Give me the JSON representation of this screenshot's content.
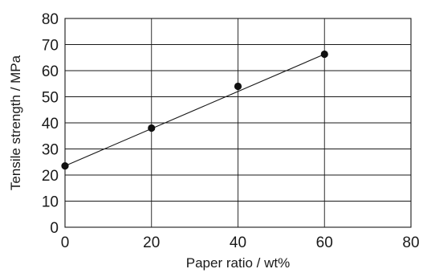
{
  "chart_data": {
    "type": "scatter",
    "xlabel": "Paper ratio / wt%",
    "ylabel": "Tensile strength / MPa",
    "xlim": [
      0,
      80
    ],
    "ylim": [
      0,
      80
    ],
    "xticks": [
      0,
      20,
      40,
      60,
      80
    ],
    "yticks": [
      0,
      10,
      20,
      30,
      40,
      50,
      60,
      70,
      80
    ],
    "grid": true,
    "series": [
      {
        "x": [
          0,
          20,
          40,
          60
        ],
        "y": [
          23.5,
          38,
          54,
          66.3
        ]
      }
    ],
    "trend_line": {
      "x": [
        0,
        60
      ],
      "y": [
        23.5,
        66.3
      ]
    },
    "colors": {
      "marks": "#111111",
      "lines": "#1a1a1a"
    }
  }
}
